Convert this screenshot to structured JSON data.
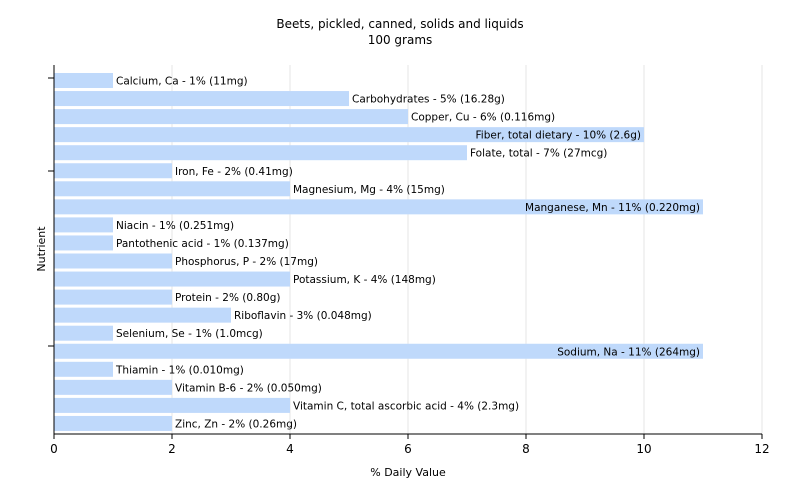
{
  "chart_data": {
    "type": "bar",
    "orientation": "horizontal",
    "title": "Beets, pickled, canned, solids and liquids",
    "subtitle": "100 grams",
    "xlabel": "% Daily Value",
    "ylabel": "Nutrient",
    "xlim": [
      0,
      12
    ],
    "xticks": [
      "0",
      "2",
      "4",
      "6",
      "8",
      "10",
      "12"
    ],
    "grid": true,
    "bar_color": "#bfd9fb",
    "categories": [
      "Calcium, Ca",
      "Carbohydrates",
      "Copper, Cu",
      "Fiber, total dietary",
      "Folate, total",
      "Iron, Fe",
      "Magnesium, Mg",
      "Manganese, Mn",
      "Niacin",
      "Pantothenic acid",
      "Phosphorus, P",
      "Potassium, K",
      "Protein",
      "Riboflavin",
      "Selenium, Se",
      "Sodium, Na",
      "Thiamin",
      "Vitamin B-6",
      "Vitamin C, total ascorbic acid",
      "Zinc, Zn"
    ],
    "values": [
      1,
      5,
      6,
      10,
      7,
      2,
      4,
      11,
      1,
      1,
      2,
      4,
      2,
      3,
      1,
      11,
      1,
      2,
      4,
      2
    ],
    "labels": [
      "Calcium, Ca - 1% (11mg)",
      "Carbohydrates - 5% (16.28g)",
      "Copper, Cu - 6% (0.116mg)",
      "Fiber, total dietary - 10% (2.6g)",
      "Folate, total - 7% (27mcg)",
      "Iron, Fe - 2% (0.41mg)",
      "Magnesium, Mg - 4% (15mg)",
      "Manganese, Mn - 11% (0.220mg)",
      "Niacin - 1% (0.251mg)",
      "Pantothenic acid - 1% (0.137mg)",
      "Phosphorus, P - 2% (17mg)",
      "Potassium, K - 4% (148mg)",
      "Protein - 2% (0.80g)",
      "Riboflavin - 3% (0.048mg)",
      "Selenium, Se - 1% (1.0mcg)",
      "Sodium, Na - 11% (264mg)",
      "Thiamin - 1% (0.010mg)",
      "Vitamin B-6 - 2% (0.050mg)",
      "Vitamin C, total ascorbic acid - 4% (2.3mg)",
      "Zinc, Zn - 2% (0.26mg)"
    ]
  }
}
